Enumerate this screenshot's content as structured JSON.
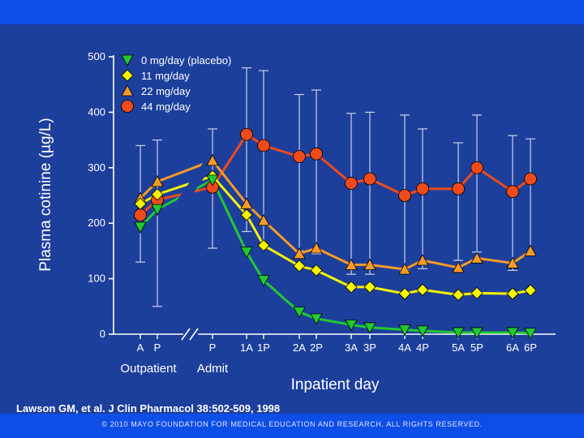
{
  "chart_data": {
    "type": "line",
    "ylabel": "Plasma cotinine (µg/L)",
    "xlabel": "Inpatient day",
    "ylim": [
      0,
      500
    ],
    "yticks": [
      0,
      100,
      200,
      300,
      400,
      500
    ],
    "x_groups": [
      "Outpatient",
      "Admit"
    ],
    "categories": [
      "A",
      "P",
      "P",
      "1A",
      "1P",
      "2A",
      "2P",
      "3A",
      "3P",
      "4A",
      "4P",
      "5A",
      "5P",
      "6A",
      "6P"
    ],
    "series": [
      {
        "name": "0 mg/day (placebo)",
        "color": "#22c832",
        "marker": "triangle-down",
        "values": [
          193,
          225,
          278,
          148,
          97,
          40,
          28,
          17,
          12,
          8,
          6,
          3,
          3,
          3,
          2
        ],
        "error_upper": [
          null,
          null,
          null,
          null,
          null,
          null,
          null,
          null,
          null,
          null,
          null,
          null,
          null,
          null,
          null
        ],
        "error_lower": [
          null,
          null,
          null,
          null,
          null,
          null,
          null,
          null,
          null,
          null,
          null,
          null,
          null,
          null,
          null
        ]
      },
      {
        "name": "11 mg/day",
        "color": "#f5f500",
        "marker": "diamond",
        "values": [
          235,
          252,
          285,
          215,
          160,
          123,
          115,
          85,
          85,
          73,
          80,
          71,
          74,
          73,
          79
        ],
        "error_upper": [
          null,
          null,
          null,
          null,
          null,
          null,
          null,
          null,
          null,
          null,
          null,
          null,
          null,
          null,
          null
        ],
        "error_lower": [
          null,
          null,
          null,
          null,
          null,
          null,
          null,
          null,
          null,
          null,
          null,
          null,
          null,
          null,
          null
        ]
      },
      {
        "name": "22 mg/day",
        "color": "#f59a28",
        "marker": "triangle-up",
        "values": [
          245,
          275,
          313,
          235,
          205,
          145,
          155,
          125,
          125,
          117,
          133,
          120,
          137,
          128,
          150
        ],
        "error_upper": [
          null,
          null,
          null,
          null,
          null,
          null,
          null,
          null,
          null,
          null,
          null,
          null,
          null,
          null,
          null
        ],
        "error_lower": [
          null,
          null,
          null,
          null,
          null,
          null,
          null,
          null,
          null,
          null,
          null,
          null,
          null,
          null,
          null
        ]
      },
      {
        "name": "44 mg/day",
        "color": "#ee4a1a",
        "marker": "circle",
        "values": [
          215,
          242,
          265,
          360,
          340,
          320,
          325,
          272,
          280,
          250,
          262,
          262,
          300,
          257,
          280
        ],
        "error_upper": [
          340,
          350,
          370,
          480,
          475,
          432,
          440,
          398,
          400,
          395,
          370,
          345,
          395,
          358,
          352
        ],
        "error_lower": [
          130,
          50,
          155,
          185,
          160,
          150,
          145,
          108,
          108,
          115,
          118,
          133,
          148,
          115,
          145
        ]
      }
    ]
  },
  "citation": "Lawson GM, et al. J Clin Pharmacol 38:502-509, 1998",
  "copyright": "© 2010 MAYO FOUNDATION FOR MEDICAL EDUCATION AND RESEARCH. ALL RIGHTS RESERVED."
}
